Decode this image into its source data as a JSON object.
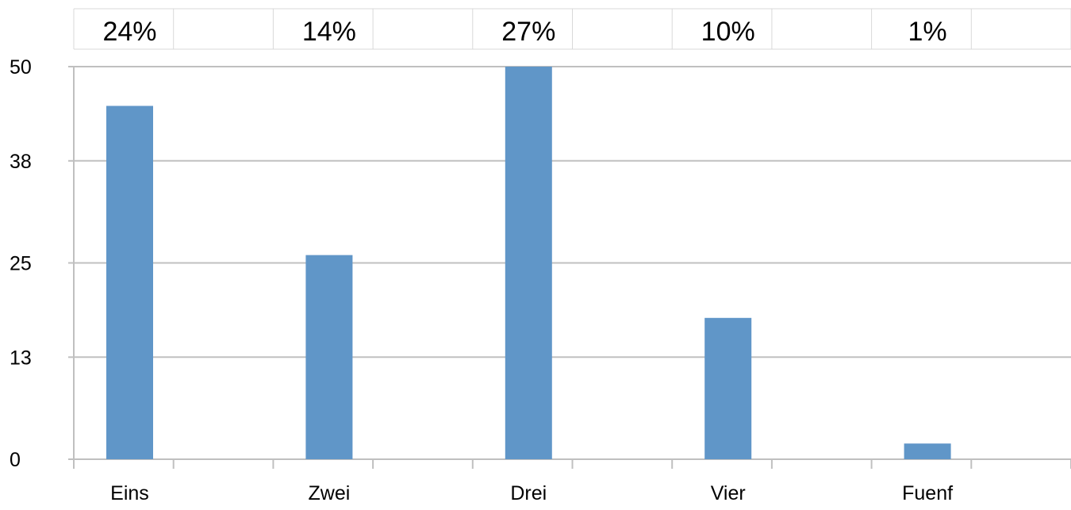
{
  "chart_data": {
    "type": "bar",
    "categories": [
      "Eins",
      "Zwei",
      "Drei",
      "Vier",
      "Fuenf"
    ],
    "values": [
      45,
      26,
      50,
      18,
      2
    ],
    "percent_labels": [
      "24%",
      "14%",
      "27%",
      "10%",
      "1%"
    ],
    "yticks": [
      "0",
      "13",
      "25",
      "38",
      "50"
    ],
    "ylim": [
      0,
      50
    ],
    "grid": true,
    "bar_color": "#6096C8",
    "grid_color": "#C0C0C0",
    "table_border_color": "#D8D8D8"
  }
}
